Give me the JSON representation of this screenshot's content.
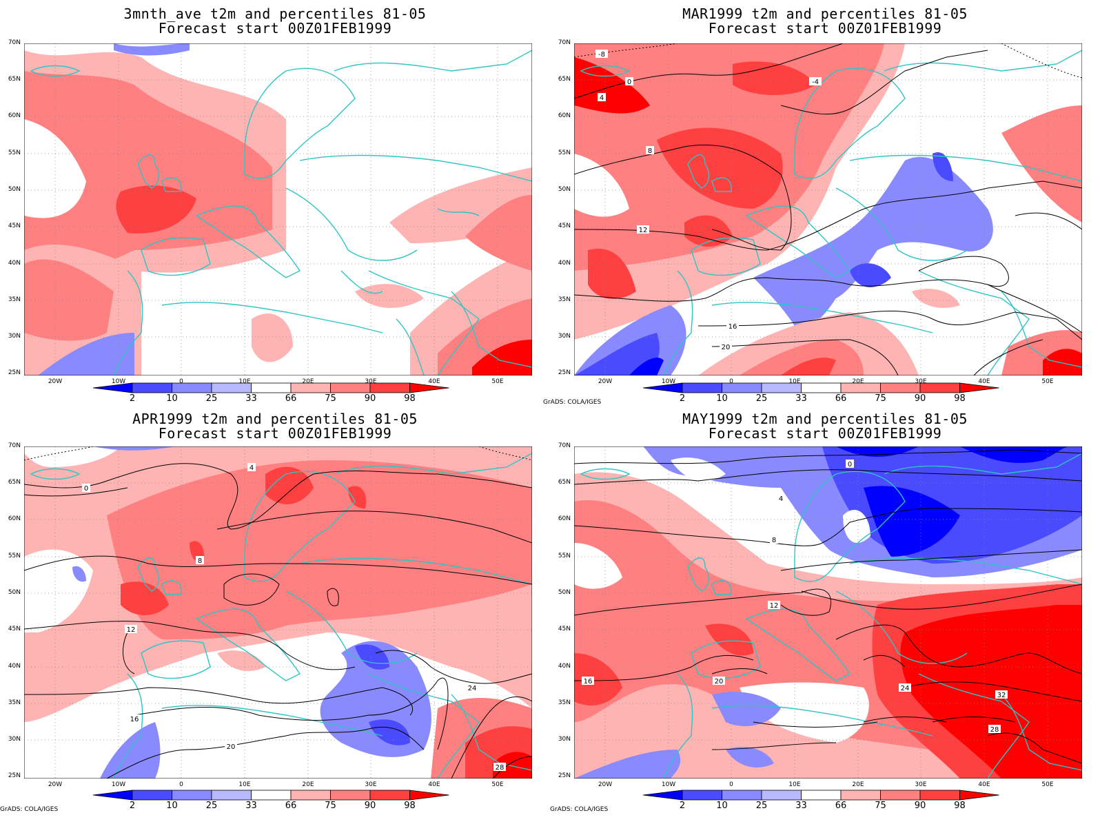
{
  "colors": {
    "coast": "#2ec4c4",
    "grid": "#888888",
    "contour": "#000000",
    "legend": [
      "#0000ff",
      "#4a4aff",
      "#8a8aff",
      "#b8b8ff",
      "#ffffff",
      "#ffb4b4",
      "#ff8080",
      "#ff4040",
      "#ff0000"
    ]
  },
  "colorbar_labels": [
    "2",
    "10",
    "25",
    "33",
    "66",
    "75",
    "90",
    "98"
  ],
  "lat_labels": [
    "70N",
    "65N",
    "60N",
    "55N",
    "50N",
    "45N",
    "40N",
    "35N",
    "30N",
    "25N"
  ],
  "lon_labels": [
    "20W",
    "10W",
    "0",
    "10E",
    "20E",
    "30E",
    "40E",
    "50E"
  ],
  "credit": "GrADS: COLA/IGES",
  "panels": [
    {
      "title1": "3mnth_ave t2m and percentiles 81-05",
      "title2": "Forecast start 00Z01FEB1999",
      "show_credit": false,
      "contour_labels": []
    },
    {
      "title1": "MAR1999 t2m and percentiles 81-05",
      "title2": "Forecast start 00Z01FEB1999",
      "show_credit": true,
      "contour_labels": [
        "-4",
        "0",
        "4",
        "-8",
        "8",
        "12",
        "16",
        "20"
      ]
    },
    {
      "title1": "APR1999 t2m and percentiles 81-05",
      "title2": "Forecast start 00Z01FEB1999",
      "show_credit": true,
      "contour_labels": [
        "0",
        "4",
        "8",
        "12",
        "16",
        "20",
        "24",
        "28"
      ]
    },
    {
      "title1": "MAY1999 t2m and percentiles 81-05",
      "title2": "Forecast start 00Z01FEB1999",
      "show_credit": true,
      "contour_labels": [
        "0",
        "4",
        "8",
        "12",
        "16",
        "20",
        "24",
        "28",
        "32"
      ]
    }
  ]
}
